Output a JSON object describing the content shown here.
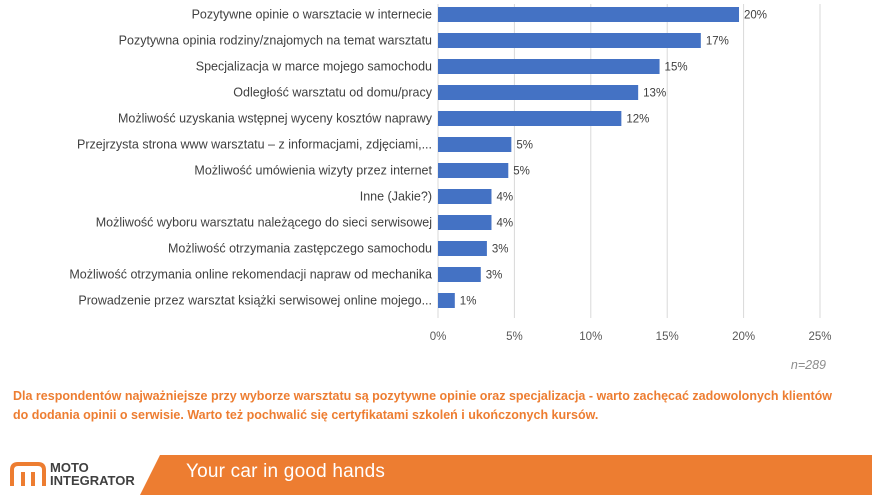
{
  "chart_data": {
    "type": "bar",
    "orientation": "horizontal",
    "categories": [
      "Pozytywne opinie o warsztacie w internecie",
      "Pozytywna opinia rodziny/znajomych na temat warsztatu",
      "Specjalizacja w marce mojego samochodu",
      "Odległość warsztatu od domu/pracy",
      "Możliwość uzyskania wstępnej wyceny kosztów naprawy",
      "Przejrzysta strona www warsztatu – z informacjami, zdjęciami,...",
      "Możliwość umówienia wizyty przez internet",
      "Inne (Jakie?)",
      "Możliwość wyboru warsztatu należącego do sieci serwisowej",
      "Możliwość otrzymania zastępczego samochodu",
      "Możliwość otrzymania online rekomendacji napraw od mechanika",
      "Prowadzenie przez warsztat książki serwisowej online mojego..."
    ],
    "values": [
      19.7,
      17.2,
      14.5,
      13.1,
      12.0,
      4.8,
      4.6,
      3.5,
      3.5,
      3.2,
      2.8,
      1.1
    ],
    "value_labels": [
      "20%",
      "17%",
      "15%",
      "13%",
      "12%",
      "5%",
      "5%",
      "4%",
      "4%",
      "3%",
      "3%",
      "1%"
    ],
    "xlim": [
      0,
      25
    ],
    "ticks": [
      0,
      5,
      10,
      15,
      20,
      25
    ],
    "tick_labels": [
      "0%",
      "5%",
      "10%",
      "15%",
      "20%",
      "25%"
    ],
    "grid": true,
    "bar_color": "#4472c4"
  },
  "note": "n=289",
  "takeaway": "Dla respondentów najważniejsze przy wyborze warsztatu są pozytywne opinie oraz specjalizacja - warto zachęcać zadowolonych klientów do dodania opinii o serwisie. Warto też pochwalić się certyfikatami szkoleń i ukończonych kursów.",
  "footer": {
    "logo_line1": "MOTO",
    "logo_line2": "INTEGRATOR",
    "tagline": "Your car in good hands",
    "accent_color": "#ed7d31"
  }
}
